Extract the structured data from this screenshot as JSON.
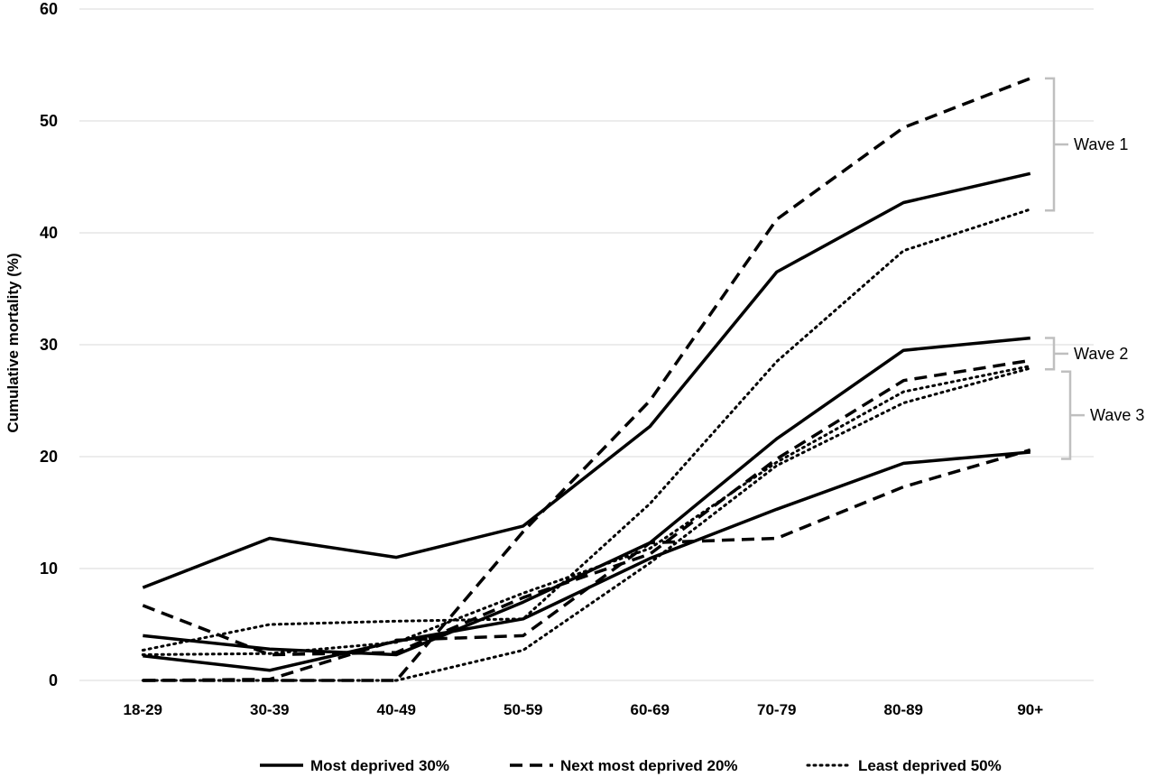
{
  "chart_data": {
    "type": "line",
    "title": "",
    "xlabel": "",
    "ylabel": "Cumulative mortality (%)",
    "ylim": [
      0,
      60
    ],
    "yticks": [
      "0",
      "10",
      "20",
      "30",
      "40",
      "50",
      "60"
    ],
    "grid": true,
    "legend_position": "bottom",
    "categories": [
      "18-29",
      "30-39",
      "40-49",
      "50-59",
      "60-69",
      "70-79",
      "80-89",
      "90+"
    ],
    "legend": [
      {
        "label": "Most deprived 30%",
        "style": "solid"
      },
      {
        "label": "Next most deprived 20%",
        "style": "dashed"
      },
      {
        "label": "Least deprived 50%",
        "style": "dotted"
      }
    ],
    "series": [
      {
        "group": "Most deprived 30%",
        "wave": "Wave 1",
        "style": "solid",
        "values": [
          8.3,
          12.7,
          11.0,
          13.8,
          22.7,
          36.5,
          42.7,
          45.3
        ]
      },
      {
        "group": "Next most deprived 20%",
        "wave": "Wave 1",
        "style": "dashed",
        "values": [
          0.0,
          0.0,
          0.0,
          13.3,
          25.0,
          41.2,
          49.4,
          53.8
        ]
      },
      {
        "group": "Least deprived 50%",
        "wave": "Wave 1",
        "style": "dotted",
        "values": [
          2.7,
          5.0,
          5.3,
          5.5,
          15.8,
          28.5,
          38.4,
          42.1
        ]
      },
      {
        "group": "Most deprived 30%",
        "wave": "Wave 2",
        "style": "solid",
        "values": [
          4.0,
          2.8,
          2.3,
          7.0,
          12.3,
          21.6,
          29.5,
          30.6
        ]
      },
      {
        "group": "Next most deprived 20%",
        "wave": "Wave 2",
        "style": "dashed",
        "values": [
          6.7,
          2.3,
          2.5,
          7.4,
          11.3,
          19.8,
          26.8,
          28.6
        ]
      },
      {
        "group": "Least deprived 50%",
        "wave": "Wave 2",
        "style": "dotted",
        "values": [
          2.3,
          2.4,
          3.4,
          7.8,
          11.8,
          19.5,
          25.8,
          28.1
        ]
      },
      {
        "group": "Most deprived 30%",
        "wave": "Wave 3",
        "style": "solid",
        "values": [
          2.2,
          0.9,
          3.5,
          5.5,
          10.9,
          15.3,
          19.4,
          20.4
        ]
      },
      {
        "group": "Next most deprived 20%",
        "wave": "Wave 3",
        "style": "dashed",
        "values": [
          0.0,
          0.1,
          3.6,
          4.0,
          12.3,
          12.7,
          17.3,
          20.6
        ]
      },
      {
        "group": "Least deprived 50%",
        "wave": "Wave 3",
        "style": "dotted",
        "values": [
          0.0,
          0.0,
          0.0,
          2.7,
          10.5,
          19.2,
          24.8,
          27.9
        ]
      }
    ],
    "annotations": [
      {
        "label": "Wave 1",
        "range": [
          42.0,
          53.8
        ]
      },
      {
        "label": "Wave 2",
        "range": [
          27.8,
          30.6
        ]
      },
      {
        "label": "Wave 3",
        "range": [
          19.8,
          27.6
        ]
      }
    ]
  },
  "colors": {
    "line": "#000000",
    "grid": "#d9d9d9",
    "bracket": "#bfbfbf"
  }
}
